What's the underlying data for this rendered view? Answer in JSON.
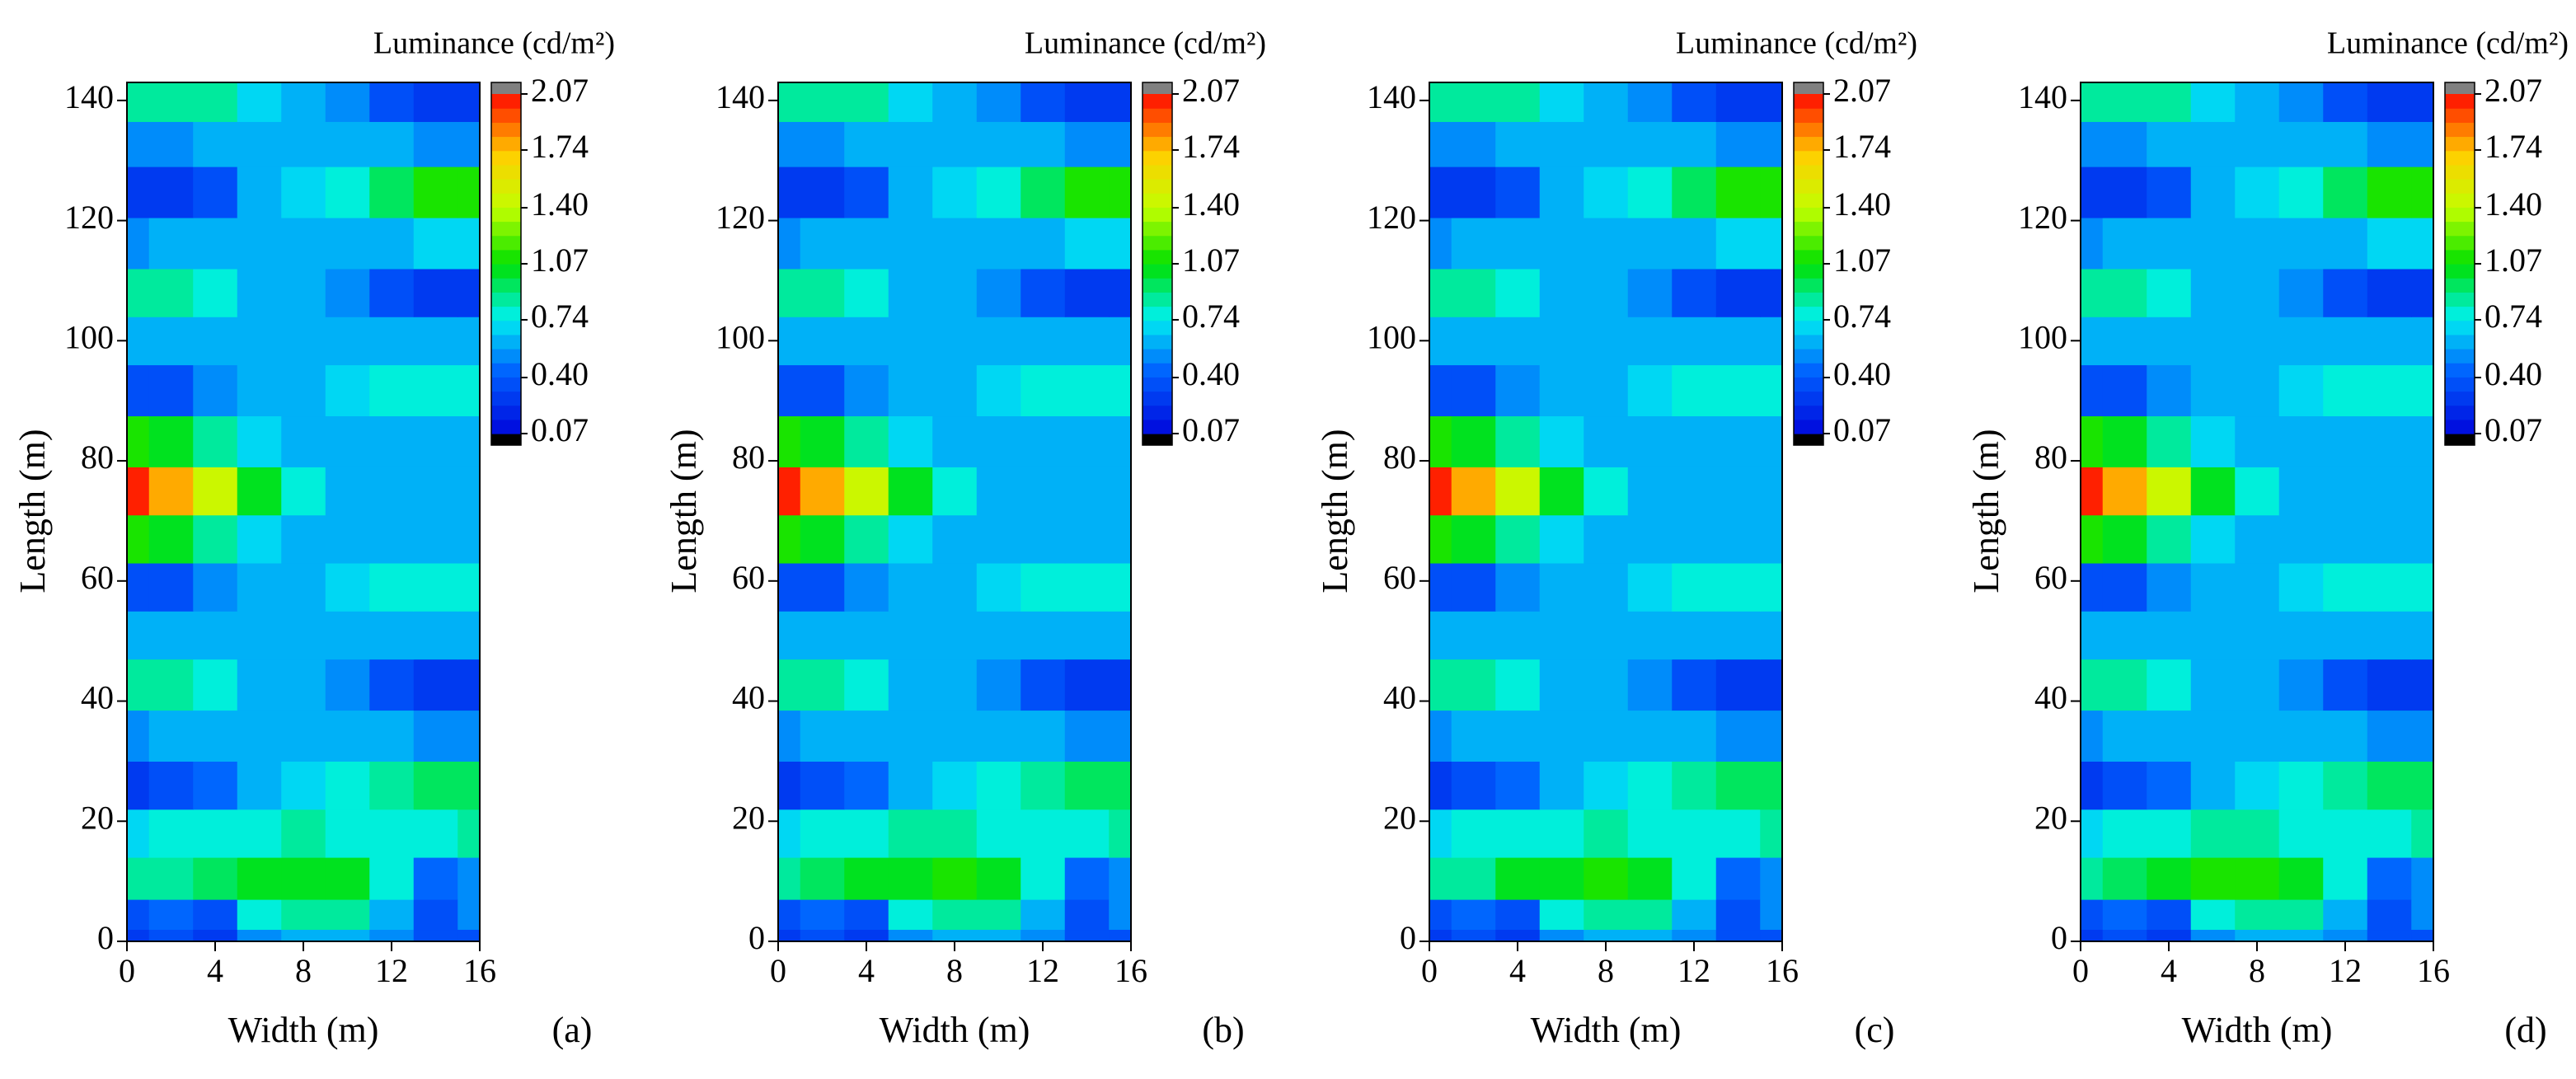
{
  "chart_data": [
    {
      "type": "contour",
      "title": "Luminance (cd/m²)",
      "xlabel": "Width (m)",
      "ylabel": "Length (m)",
      "label": "(a)",
      "x": [
        0,
        2,
        4,
        6,
        8,
        10,
        12,
        14,
        16
      ],
      "y": [
        0,
        4,
        10,
        18,
        26,
        34,
        43,
        51,
        59,
        67,
        75,
        83,
        92,
        100,
        108,
        116,
        125,
        133,
        140
      ],
      "z": [
        [
          0.3,
          0.35,
          0.3,
          0.55,
          0.65,
          0.65,
          0.55,
          0.4,
          0.35
        ],
        [
          0.35,
          0.45,
          0.4,
          0.75,
          0.85,
          0.85,
          0.6,
          0.35,
          0.5
        ],
        [
          0.85,
          0.9,
          0.95,
          1.0,
          1.05,
          1.0,
          0.8,
          0.45,
          0.55
        ],
        [
          0.7,
          0.75,
          0.8,
          0.8,
          0.85,
          0.8,
          0.8,
          0.8,
          0.85
        ],
        [
          0.3,
          0.35,
          0.45,
          0.6,
          0.7,
          0.75,
          0.85,
          0.95,
          0.95
        ],
        [
          0.55,
          0.6,
          0.6,
          0.65,
          0.65,
          0.65,
          0.6,
          0.55,
          0.55
        ],
        [
          0.9,
          0.85,
          0.75,
          0.65,
          0.6,
          0.5,
          0.35,
          0.25,
          0.25
        ],
        [
          0.6,
          0.6,
          0.6,
          0.65,
          0.65,
          0.65,
          0.6,
          0.6,
          0.6
        ],
        [
          0.35,
          0.4,
          0.5,
          0.6,
          0.65,
          0.7,
          0.75,
          0.8,
          0.8
        ],
        [
          1.1,
          1.0,
          0.85,
          0.7,
          0.65,
          0.65,
          0.65,
          0.65,
          0.65
        ],
        [
          2.0,
          1.8,
          1.45,
          1.05,
          0.75,
          0.65,
          0.6,
          0.6,
          0.6
        ],
        [
          1.1,
          1.0,
          0.85,
          0.7,
          0.65,
          0.65,
          0.65,
          0.65,
          0.65
        ],
        [
          0.35,
          0.4,
          0.5,
          0.6,
          0.65,
          0.7,
          0.75,
          0.8,
          0.8
        ],
        [
          0.6,
          0.6,
          0.6,
          0.65,
          0.65,
          0.65,
          0.6,
          0.6,
          0.6
        ],
        [
          0.9,
          0.85,
          0.75,
          0.65,
          0.6,
          0.5,
          0.35,
          0.25,
          0.25
        ],
        [
          0.55,
          0.6,
          0.6,
          0.65,
          0.65,
          0.65,
          0.65,
          0.7,
          0.7
        ],
        [
          0.25,
          0.3,
          0.4,
          0.6,
          0.7,
          0.8,
          0.95,
          1.1,
          1.15
        ],
        [
          0.55,
          0.55,
          0.6,
          0.65,
          0.65,
          0.65,
          0.6,
          0.55,
          0.5
        ],
        [
          0.9,
          0.9,
          0.85,
          0.7,
          0.65,
          0.5,
          0.35,
          0.25,
          0.25
        ]
      ],
      "xlim": [
        0,
        16
      ],
      "ylim": [
        0,
        143
      ],
      "xticks": [
        0,
        4,
        8,
        12,
        16
      ],
      "yticks": [
        0,
        20,
        40,
        60,
        80,
        100,
        120,
        140
      ],
      "colorbar": {
        "zlim": [
          0.07,
          2.07
        ],
        "zticks": [
          0.07,
          {
            "value": 0.4,
            "label": "0.40"
          },
          0.74,
          1.07,
          {
            "value": 1.4,
            "label": "1.40"
          },
          1.74,
          2.07
        ],
        "colors": [
          "#0010e0",
          "#0060ff",
          "#00f0f0",
          "#00e000",
          "#c0ff00",
          "#ffd000",
          "#ff2000"
        ],
        "under": "#000000",
        "over": "#808080"
      }
    },
    {
      "type": "contour",
      "title": "Luminance (cd/m²)",
      "xlabel": "Width (m)",
      "ylabel": "Length (m)",
      "label": "(b)",
      "x": [
        0,
        2,
        4,
        6,
        8,
        10,
        12,
        14,
        16
      ],
      "y": [
        0,
        4,
        10,
        18,
        26,
        34,
        43,
        51,
        59,
        67,
        75,
        83,
        92,
        100,
        108,
        116,
        125,
        133,
        140
      ],
      "z": [
        [
          0.3,
          0.35,
          0.3,
          0.55,
          0.65,
          0.65,
          0.55,
          0.4,
          0.35
        ],
        [
          0.35,
          0.45,
          0.4,
          0.75,
          0.85,
          0.85,
          0.6,
          0.35,
          0.5
        ],
        [
          0.85,
          0.95,
          1.0,
          1.05,
          1.1,
          1.0,
          0.8,
          0.45,
          0.55
        ],
        [
          0.7,
          0.75,
          0.8,
          0.85,
          0.85,
          0.8,
          0.75,
          0.8,
          0.85
        ],
        [
          0.3,
          0.35,
          0.45,
          0.6,
          0.7,
          0.75,
          0.85,
          0.95,
          0.95
        ],
        [
          0.55,
          0.6,
          0.6,
          0.65,
          0.65,
          0.65,
          0.6,
          0.55,
          0.55
        ],
        [
          0.9,
          0.85,
          0.75,
          0.65,
          0.6,
          0.5,
          0.35,
          0.25,
          0.25
        ],
        [
          0.6,
          0.6,
          0.6,
          0.65,
          0.65,
          0.65,
          0.6,
          0.6,
          0.6
        ],
        [
          0.35,
          0.4,
          0.5,
          0.6,
          0.65,
          0.7,
          0.75,
          0.8,
          0.8
        ],
        [
          1.1,
          1.0,
          0.85,
          0.7,
          0.65,
          0.65,
          0.65,
          0.65,
          0.65
        ],
        [
          2.0,
          1.8,
          1.45,
          1.05,
          0.75,
          0.65,
          0.6,
          0.6,
          0.6
        ],
        [
          1.1,
          1.0,
          0.85,
          0.7,
          0.65,
          0.65,
          0.65,
          0.65,
          0.65
        ],
        [
          0.35,
          0.4,
          0.5,
          0.6,
          0.65,
          0.7,
          0.75,
          0.8,
          0.8
        ],
        [
          0.6,
          0.6,
          0.6,
          0.65,
          0.65,
          0.65,
          0.6,
          0.6,
          0.6
        ],
        [
          0.9,
          0.85,
          0.75,
          0.65,
          0.6,
          0.5,
          0.35,
          0.25,
          0.25
        ],
        [
          0.55,
          0.6,
          0.6,
          0.65,
          0.65,
          0.65,
          0.65,
          0.7,
          0.7
        ],
        [
          0.25,
          0.3,
          0.4,
          0.6,
          0.7,
          0.8,
          0.95,
          1.1,
          1.15
        ],
        [
          0.55,
          0.55,
          0.6,
          0.65,
          0.65,
          0.65,
          0.6,
          0.55,
          0.5
        ],
        [
          0.9,
          0.9,
          0.85,
          0.7,
          0.65,
          0.5,
          0.35,
          0.25,
          0.25
        ]
      ],
      "xlim": [
        0,
        16
      ],
      "ylim": [
        0,
        143
      ],
      "xticks": [
        0,
        4,
        8,
        12,
        16
      ],
      "yticks": [
        0,
        20,
        40,
        60,
        80,
        100,
        120,
        140
      ],
      "colorbar": {
        "zlim": [
          0.07,
          2.07
        ],
        "zticks": [
          0.07,
          {
            "value": 0.4,
            "label": "0.40"
          },
          0.74,
          1.07,
          {
            "value": 1.4,
            "label": "1.40"
          },
          1.74,
          2.07
        ],
        "colors": [
          "#0010e0",
          "#0060ff",
          "#00f0f0",
          "#00e000",
          "#c0ff00",
          "#ffd000",
          "#ff2000"
        ],
        "under": "#000000",
        "over": "#808080"
      }
    },
    {
      "type": "contour",
      "title": "Luminance (cd/m²)",
      "xlabel": "Width (m)",
      "ylabel": "Length (m)",
      "label": "(c)",
      "x": [
        0,
        2,
        4,
        6,
        8,
        10,
        12,
        14,
        16
      ],
      "y": [
        0,
        4,
        10,
        18,
        26,
        34,
        43,
        51,
        59,
        67,
        75,
        83,
        92,
        100,
        108,
        116,
        125,
        133,
        140
      ],
      "z": [
        [
          0.3,
          0.35,
          0.3,
          0.55,
          0.65,
          0.65,
          0.55,
          0.4,
          0.35
        ],
        [
          0.35,
          0.45,
          0.4,
          0.75,
          0.85,
          0.85,
          0.6,
          0.35,
          0.5
        ],
        [
          0.85,
          0.9,
          1.0,
          1.05,
          1.1,
          1.0,
          0.8,
          0.45,
          0.55
        ],
        [
          0.7,
          0.75,
          0.8,
          0.8,
          0.85,
          0.8,
          0.75,
          0.8,
          0.85
        ],
        [
          0.3,
          0.35,
          0.45,
          0.6,
          0.7,
          0.75,
          0.85,
          0.95,
          0.95
        ],
        [
          0.55,
          0.6,
          0.6,
          0.65,
          0.65,
          0.65,
          0.6,
          0.55,
          0.55
        ],
        [
          0.9,
          0.85,
          0.75,
          0.65,
          0.6,
          0.5,
          0.35,
          0.25,
          0.25
        ],
        [
          0.6,
          0.6,
          0.6,
          0.65,
          0.65,
          0.65,
          0.6,
          0.6,
          0.6
        ],
        [
          0.35,
          0.4,
          0.5,
          0.6,
          0.65,
          0.7,
          0.75,
          0.8,
          0.8
        ],
        [
          1.1,
          1.0,
          0.85,
          0.7,
          0.65,
          0.65,
          0.65,
          0.65,
          0.65
        ],
        [
          2.0,
          1.8,
          1.45,
          1.05,
          0.75,
          0.65,
          0.6,
          0.6,
          0.6
        ],
        [
          1.1,
          1.0,
          0.85,
          0.7,
          0.65,
          0.65,
          0.65,
          0.65,
          0.65
        ],
        [
          0.35,
          0.4,
          0.5,
          0.6,
          0.65,
          0.7,
          0.75,
          0.8,
          0.8
        ],
        [
          0.6,
          0.6,
          0.6,
          0.65,
          0.65,
          0.65,
          0.6,
          0.6,
          0.6
        ],
        [
          0.9,
          0.85,
          0.75,
          0.65,
          0.6,
          0.5,
          0.35,
          0.25,
          0.25
        ],
        [
          0.55,
          0.6,
          0.6,
          0.65,
          0.65,
          0.65,
          0.65,
          0.7,
          0.7
        ],
        [
          0.25,
          0.3,
          0.4,
          0.6,
          0.7,
          0.8,
          0.95,
          1.1,
          1.15
        ],
        [
          0.55,
          0.55,
          0.6,
          0.65,
          0.65,
          0.65,
          0.6,
          0.55,
          0.5
        ],
        [
          0.9,
          0.9,
          0.85,
          0.7,
          0.65,
          0.5,
          0.35,
          0.25,
          0.25
        ]
      ],
      "xlim": [
        0,
        16
      ],
      "ylim": [
        0,
        143
      ],
      "xticks": [
        0,
        4,
        8,
        12,
        16
      ],
      "yticks": [
        0,
        20,
        40,
        60,
        80,
        100,
        120,
        140
      ],
      "colorbar": {
        "zlim": [
          0.07,
          2.07
        ],
        "zticks": [
          0.07,
          {
            "value": 0.4,
            "label": "0.40"
          },
          0.74,
          1.07,
          {
            "value": 1.4,
            "label": "1.40"
          },
          1.74,
          2.07
        ],
        "colors": [
          "#0010e0",
          "#0060ff",
          "#00f0f0",
          "#00e000",
          "#c0ff00",
          "#ffd000",
          "#ff2000"
        ],
        "under": "#000000",
        "over": "#808080"
      }
    },
    {
      "type": "contour",
      "title": "Luminance (cd/m²)",
      "xlabel": "Width (m)",
      "ylabel": "Length (m)",
      "label": "(d)",
      "x": [
        0,
        2,
        4,
        6,
        8,
        10,
        12,
        14,
        16
      ],
      "y": [
        0,
        4,
        10,
        18,
        26,
        34,
        43,
        51,
        59,
        67,
        75,
        83,
        92,
        100,
        108,
        116,
        125,
        133,
        140
      ],
      "z": [
        [
          0.3,
          0.35,
          0.3,
          0.55,
          0.65,
          0.65,
          0.55,
          0.4,
          0.35
        ],
        [
          0.35,
          0.45,
          0.4,
          0.75,
          0.85,
          0.85,
          0.6,
          0.35,
          0.5
        ],
        [
          0.85,
          0.95,
          1.05,
          1.1,
          1.15,
          1.05,
          0.8,
          0.45,
          0.55
        ],
        [
          0.7,
          0.75,
          0.8,
          0.85,
          0.85,
          0.8,
          0.8,
          0.8,
          0.85
        ],
        [
          0.3,
          0.35,
          0.45,
          0.6,
          0.7,
          0.75,
          0.85,
          0.95,
          0.95
        ],
        [
          0.55,
          0.6,
          0.6,
          0.65,
          0.65,
          0.65,
          0.6,
          0.55,
          0.55
        ],
        [
          0.9,
          0.85,
          0.75,
          0.65,
          0.6,
          0.5,
          0.35,
          0.25,
          0.25
        ],
        [
          0.6,
          0.6,
          0.6,
          0.65,
          0.65,
          0.65,
          0.6,
          0.6,
          0.6
        ],
        [
          0.35,
          0.4,
          0.5,
          0.6,
          0.65,
          0.7,
          0.75,
          0.8,
          0.8
        ],
        [
          1.1,
          1.0,
          0.85,
          0.7,
          0.65,
          0.65,
          0.65,
          0.65,
          0.65
        ],
        [
          2.0,
          1.8,
          1.45,
          1.05,
          0.75,
          0.65,
          0.6,
          0.6,
          0.6
        ],
        [
          1.1,
          1.0,
          0.85,
          0.7,
          0.65,
          0.65,
          0.65,
          0.65,
          0.65
        ],
        [
          0.35,
          0.4,
          0.5,
          0.6,
          0.65,
          0.7,
          0.75,
          0.8,
          0.8
        ],
        [
          0.6,
          0.6,
          0.6,
          0.65,
          0.65,
          0.65,
          0.6,
          0.6,
          0.6
        ],
        [
          0.9,
          0.85,
          0.75,
          0.65,
          0.6,
          0.5,
          0.35,
          0.25,
          0.25
        ],
        [
          0.55,
          0.6,
          0.6,
          0.65,
          0.65,
          0.65,
          0.65,
          0.7,
          0.7
        ],
        [
          0.25,
          0.3,
          0.4,
          0.6,
          0.7,
          0.8,
          0.95,
          1.1,
          1.15
        ],
        [
          0.55,
          0.55,
          0.6,
          0.65,
          0.65,
          0.65,
          0.6,
          0.55,
          0.5
        ],
        [
          0.9,
          0.9,
          0.85,
          0.7,
          0.65,
          0.5,
          0.35,
          0.25,
          0.25
        ]
      ],
      "xlim": [
        0,
        16
      ],
      "ylim": [
        0,
        143
      ],
      "xticks": [
        0,
        4,
        8,
        12,
        16
      ],
      "yticks": [
        0,
        20,
        40,
        60,
        80,
        100,
        120,
        140
      ],
      "colorbar": {
        "zlim": [
          0.07,
          2.07
        ],
        "zticks": [
          0.07,
          {
            "value": 0.4,
            "label": "0.40"
          },
          0.74,
          1.07,
          {
            "value": 1.4,
            "label": "1.40"
          },
          1.74,
          2.07
        ],
        "colors": [
          "#0010e0",
          "#0060ff",
          "#00f0f0",
          "#00e000",
          "#c0ff00",
          "#ffd000",
          "#ff2000"
        ],
        "under": "#000000",
        "over": "#808080"
      }
    }
  ]
}
